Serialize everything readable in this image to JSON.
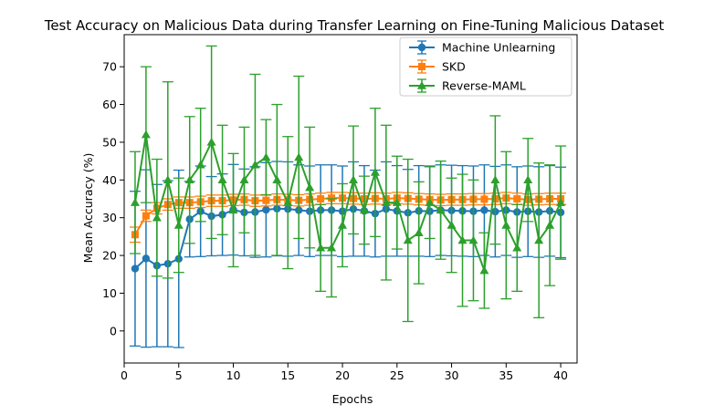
{
  "chart_data": {
    "type": "line",
    "title": "Test Accuracy on Malicious Data during Transfer Learning on Fine-Tuning Malicious Dataset",
    "xlabel": "Epochs",
    "ylabel": "Mean Accuracy (%)",
    "xlim": [
      0,
      41.5
    ],
    "ylim": [
      -8.5,
      78.5
    ],
    "xticks": [
      0,
      5,
      10,
      15,
      20,
      25,
      30,
      35,
      40
    ],
    "yticks": [
      0,
      10,
      20,
      30,
      40,
      50,
      60,
      70
    ],
    "grid": false,
    "legend_position": "top-right",
    "x": [
      1,
      2,
      3,
      4,
      5,
      6,
      7,
      8,
      9,
      10,
      11,
      12,
      13,
      14,
      15,
      16,
      17,
      18,
      19,
      20,
      21,
      22,
      23,
      24,
      25,
      26,
      27,
      28,
      29,
      30,
      31,
      32,
      33,
      34,
      35,
      36,
      37,
      38,
      39,
      40
    ],
    "series": [
      {
        "name": "Machine Unlearning",
        "color": "#1f77b4",
        "marker": "circle",
        "values": [
          16.5,
          19.2,
          17.3,
          17.8,
          19.1,
          29.6,
          31.7,
          30.4,
          30.8,
          32.1,
          31.4,
          31.5,
          32.1,
          32.4,
          32.3,
          32.0,
          31.7,
          32.0,
          32.0,
          31.7,
          32.3,
          31.8,
          31.1,
          32.3,
          31.8,
          31.3,
          31.8,
          31.7,
          32.0,
          31.9,
          31.8,
          31.7,
          32.0,
          31.6,
          32.0,
          31.5,
          31.7,
          31.5,
          31.8,
          31.4
        ],
        "errors": [
          20.5,
          23.5,
          21.5,
          22.0,
          23.5,
          10.0,
          12.0,
          10.5,
          10.8,
          12.0,
          11.5,
          12.0,
          12.5,
          12.5,
          12.5,
          12.0,
          12.0,
          12.0,
          12.0,
          12.0,
          12.5,
          12.0,
          11.5,
          12.5,
          12.0,
          11.5,
          12.0,
          12.0,
          12.0,
          12.0,
          12.0,
          12.0,
          12.0,
          12.0,
          12.0,
          12.0,
          12.0,
          12.0,
          12.0,
          12.0
        ]
      },
      {
        "name": "SKD",
        "color": "#ff7f0e",
        "marker": "square",
        "values": [
          25.5,
          30.5,
          32.5,
          33.5,
          34.0,
          34.0,
          34.2,
          34.5,
          34.5,
          34.7,
          34.8,
          34.5,
          34.6,
          34.8,
          34.7,
          34.6,
          34.8,
          35.0,
          35.2,
          35.2,
          35.1,
          35.0,
          35.1,
          35.0,
          35.2,
          35.1,
          34.9,
          34.8,
          34.7,
          34.8,
          34.8,
          34.9,
          34.9,
          35.0,
          35.2,
          35.0,
          34.8,
          34.9,
          35.0,
          35.0
        ],
        "errors": [
          2.0,
          1.5,
          1.5,
          1.5,
          1.5,
          1.5,
          1.5,
          1.5,
          1.5,
          1.5,
          1.5,
          1.5,
          1.5,
          1.5,
          1.5,
          1.5,
          1.5,
          1.5,
          1.5,
          1.5,
          1.5,
          1.5,
          1.5,
          1.5,
          1.5,
          1.5,
          1.5,
          1.5,
          1.5,
          1.5,
          1.5,
          1.5,
          1.5,
          1.5,
          1.5,
          1.5,
          1.5,
          1.5,
          1.5,
          1.5
        ]
      },
      {
        "name": "Reverse-MAML",
        "color": "#2ca02c",
        "marker": "triangle",
        "values": [
          34,
          52,
          30,
          40,
          28,
          40,
          44,
          50,
          40,
          32,
          40,
          44,
          46,
          40,
          34,
          46,
          38,
          22,
          22,
          28,
          40,
          32,
          42,
          34,
          34,
          24,
          26,
          34,
          32,
          28,
          24,
          24,
          16,
          40,
          28,
          22,
          40,
          24,
          28,
          34
        ],
        "errors": [
          13.5,
          18.0,
          15.5,
          26.0,
          12.5,
          16.8,
          15.0,
          25.5,
          14.5,
          15.0,
          14.0,
          24.0,
          10.0,
          20.0,
          17.5,
          21.5,
          16.0,
          11.5,
          13.0,
          11.0,
          14.3,
          9.0,
          17.0,
          20.5,
          12.3,
          21.5,
          13.5,
          9.5,
          13.0,
          12.5,
          17.5,
          16.0,
          10.0,
          17.0,
          19.5,
          11.5,
          11.0,
          20.5,
          16.0,
          15.0
        ]
      }
    ]
  }
}
